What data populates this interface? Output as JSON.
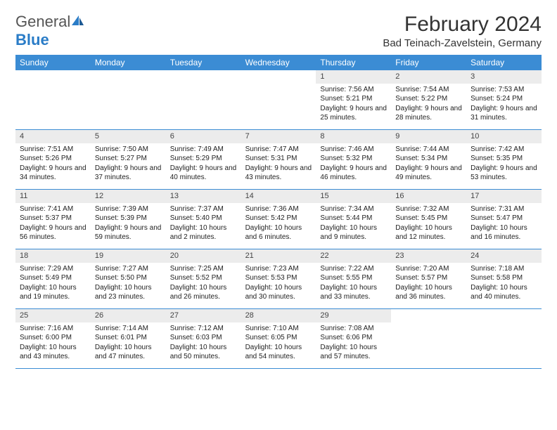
{
  "logo": {
    "text1": "General",
    "text2": "Blue"
  },
  "title": "February 2024",
  "location": "Bad Teinach-Zavelstein, Germany",
  "colors": {
    "header_bg": "#3b8cd4",
    "header_text": "#ffffff",
    "daynum_bg": "#ececec",
    "border": "#3b8cd4",
    "logo_gray": "#555555",
    "logo_blue": "#2a7cc7"
  },
  "day_names": [
    "Sunday",
    "Monday",
    "Tuesday",
    "Wednesday",
    "Thursday",
    "Friday",
    "Saturday"
  ],
  "weeks": [
    [
      {
        "n": "",
        "sr": "",
        "ss": "",
        "dl": ""
      },
      {
        "n": "",
        "sr": "",
        "ss": "",
        "dl": ""
      },
      {
        "n": "",
        "sr": "",
        "ss": "",
        "dl": ""
      },
      {
        "n": "",
        "sr": "",
        "ss": "",
        "dl": ""
      },
      {
        "n": "1",
        "sr": "Sunrise: 7:56 AM",
        "ss": "Sunset: 5:21 PM",
        "dl": "Daylight: 9 hours and 25 minutes."
      },
      {
        "n": "2",
        "sr": "Sunrise: 7:54 AM",
        "ss": "Sunset: 5:22 PM",
        "dl": "Daylight: 9 hours and 28 minutes."
      },
      {
        "n": "3",
        "sr": "Sunrise: 7:53 AM",
        "ss": "Sunset: 5:24 PM",
        "dl": "Daylight: 9 hours and 31 minutes."
      }
    ],
    [
      {
        "n": "4",
        "sr": "Sunrise: 7:51 AM",
        "ss": "Sunset: 5:26 PM",
        "dl": "Daylight: 9 hours and 34 minutes."
      },
      {
        "n": "5",
        "sr": "Sunrise: 7:50 AM",
        "ss": "Sunset: 5:27 PM",
        "dl": "Daylight: 9 hours and 37 minutes."
      },
      {
        "n": "6",
        "sr": "Sunrise: 7:49 AM",
        "ss": "Sunset: 5:29 PM",
        "dl": "Daylight: 9 hours and 40 minutes."
      },
      {
        "n": "7",
        "sr": "Sunrise: 7:47 AM",
        "ss": "Sunset: 5:31 PM",
        "dl": "Daylight: 9 hours and 43 minutes."
      },
      {
        "n": "8",
        "sr": "Sunrise: 7:46 AM",
        "ss": "Sunset: 5:32 PM",
        "dl": "Daylight: 9 hours and 46 minutes."
      },
      {
        "n": "9",
        "sr": "Sunrise: 7:44 AM",
        "ss": "Sunset: 5:34 PM",
        "dl": "Daylight: 9 hours and 49 minutes."
      },
      {
        "n": "10",
        "sr": "Sunrise: 7:42 AM",
        "ss": "Sunset: 5:35 PM",
        "dl": "Daylight: 9 hours and 53 minutes."
      }
    ],
    [
      {
        "n": "11",
        "sr": "Sunrise: 7:41 AM",
        "ss": "Sunset: 5:37 PM",
        "dl": "Daylight: 9 hours and 56 minutes."
      },
      {
        "n": "12",
        "sr": "Sunrise: 7:39 AM",
        "ss": "Sunset: 5:39 PM",
        "dl": "Daylight: 9 hours and 59 minutes."
      },
      {
        "n": "13",
        "sr": "Sunrise: 7:37 AM",
        "ss": "Sunset: 5:40 PM",
        "dl": "Daylight: 10 hours and 2 minutes."
      },
      {
        "n": "14",
        "sr": "Sunrise: 7:36 AM",
        "ss": "Sunset: 5:42 PM",
        "dl": "Daylight: 10 hours and 6 minutes."
      },
      {
        "n": "15",
        "sr": "Sunrise: 7:34 AM",
        "ss": "Sunset: 5:44 PM",
        "dl": "Daylight: 10 hours and 9 minutes."
      },
      {
        "n": "16",
        "sr": "Sunrise: 7:32 AM",
        "ss": "Sunset: 5:45 PM",
        "dl": "Daylight: 10 hours and 12 minutes."
      },
      {
        "n": "17",
        "sr": "Sunrise: 7:31 AM",
        "ss": "Sunset: 5:47 PM",
        "dl": "Daylight: 10 hours and 16 minutes."
      }
    ],
    [
      {
        "n": "18",
        "sr": "Sunrise: 7:29 AM",
        "ss": "Sunset: 5:49 PM",
        "dl": "Daylight: 10 hours and 19 minutes."
      },
      {
        "n": "19",
        "sr": "Sunrise: 7:27 AM",
        "ss": "Sunset: 5:50 PM",
        "dl": "Daylight: 10 hours and 23 minutes."
      },
      {
        "n": "20",
        "sr": "Sunrise: 7:25 AM",
        "ss": "Sunset: 5:52 PM",
        "dl": "Daylight: 10 hours and 26 minutes."
      },
      {
        "n": "21",
        "sr": "Sunrise: 7:23 AM",
        "ss": "Sunset: 5:53 PM",
        "dl": "Daylight: 10 hours and 30 minutes."
      },
      {
        "n": "22",
        "sr": "Sunrise: 7:22 AM",
        "ss": "Sunset: 5:55 PM",
        "dl": "Daylight: 10 hours and 33 minutes."
      },
      {
        "n": "23",
        "sr": "Sunrise: 7:20 AM",
        "ss": "Sunset: 5:57 PM",
        "dl": "Daylight: 10 hours and 36 minutes."
      },
      {
        "n": "24",
        "sr": "Sunrise: 7:18 AM",
        "ss": "Sunset: 5:58 PM",
        "dl": "Daylight: 10 hours and 40 minutes."
      }
    ],
    [
      {
        "n": "25",
        "sr": "Sunrise: 7:16 AM",
        "ss": "Sunset: 6:00 PM",
        "dl": "Daylight: 10 hours and 43 minutes."
      },
      {
        "n": "26",
        "sr": "Sunrise: 7:14 AM",
        "ss": "Sunset: 6:01 PM",
        "dl": "Daylight: 10 hours and 47 minutes."
      },
      {
        "n": "27",
        "sr": "Sunrise: 7:12 AM",
        "ss": "Sunset: 6:03 PM",
        "dl": "Daylight: 10 hours and 50 minutes."
      },
      {
        "n": "28",
        "sr": "Sunrise: 7:10 AM",
        "ss": "Sunset: 6:05 PM",
        "dl": "Daylight: 10 hours and 54 minutes."
      },
      {
        "n": "29",
        "sr": "Sunrise: 7:08 AM",
        "ss": "Sunset: 6:06 PM",
        "dl": "Daylight: 10 hours and 57 minutes."
      },
      {
        "n": "",
        "sr": "",
        "ss": "",
        "dl": ""
      },
      {
        "n": "",
        "sr": "",
        "ss": "",
        "dl": ""
      }
    ]
  ]
}
